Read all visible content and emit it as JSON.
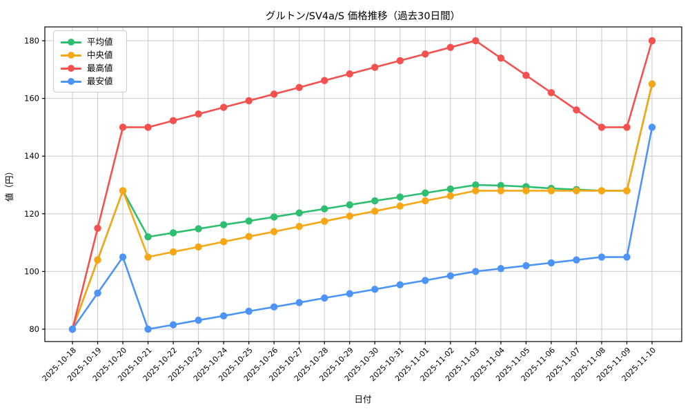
{
  "title": "グルトン/SV4a/S 価格推移（過去30日間）",
  "colors": {
    "average": "#2dbe70",
    "median": "#f7a615",
    "max": "#f4504e",
    "min": "#4d94f8",
    "grid": "#c9c9c9",
    "spine": "#000000",
    "legend_border": "#cccccc"
  },
  "chart_data": {
    "type": "line",
    "title": "グルトン/SV4a/S 価格推移（過去30日間）",
    "xlabel": "日付",
    "ylabel": "値（円）",
    "grid": true,
    "legend_position": "upper left",
    "ylim": [
      75.7,
      184.8
    ],
    "yticks": [
      80,
      100,
      120,
      140,
      160,
      180
    ],
    "categories": [
      "2025-10-18",
      "2025-10-19",
      "2025-10-20",
      "2025-10-21",
      "2025-10-22",
      "2025-10-23",
      "2025-10-24",
      "2025-10-25",
      "2025-10-26",
      "2025-10-27",
      "2025-10-28",
      "2025-10-29",
      "2025-10-30",
      "2025-10-31",
      "2025-11-01",
      "2025-11-02",
      "2025-11-03",
      "2025-11-04",
      "2025-11-05",
      "2025-11-06",
      "2025-11-07",
      "2025-11-08",
      "2025-11-09",
      "2025-11-10"
    ],
    "series": [
      {
        "name": "平均値",
        "color": "#2dbe70",
        "values": [
          80,
          104,
          128,
          112,
          113.4,
          114.8,
          116.2,
          117.5,
          118.9,
          120.3,
          121.7,
          123.1,
          124.5,
          125.8,
          127.2,
          128.6,
          130,
          129.8,
          129.4,
          128.8,
          128.4,
          128,
          128,
          165
        ]
      },
      {
        "name": "中央値",
        "color": "#f7a615",
        "values": [
          80,
          104,
          128,
          105,
          106.8,
          108.5,
          110.3,
          112.1,
          113.8,
          115.6,
          117.4,
          119.2,
          120.9,
          122.7,
          124.5,
          126.2,
          128,
          128,
          128,
          128,
          128,
          128,
          128,
          165
        ]
      },
      {
        "name": "最高値",
        "color": "#f4504e",
        "values": [
          80,
          115,
          150,
          150,
          152.3,
          154.6,
          156.9,
          159.2,
          161.5,
          163.8,
          166.2,
          168.5,
          170.8,
          173.1,
          175.4,
          177.7,
          180,
          174,
          168,
          162,
          156,
          150,
          150,
          180
        ]
      },
      {
        "name": "最安値",
        "color": "#4d94f8",
        "values": [
          80,
          92.5,
          105,
          80,
          81.5,
          83.1,
          84.6,
          86.2,
          87.7,
          89.2,
          90.8,
          92.3,
          93.8,
          95.4,
          96.9,
          98.5,
          100,
          101,
          102,
          103,
          104,
          105,
          105,
          150
        ]
      }
    ]
  }
}
